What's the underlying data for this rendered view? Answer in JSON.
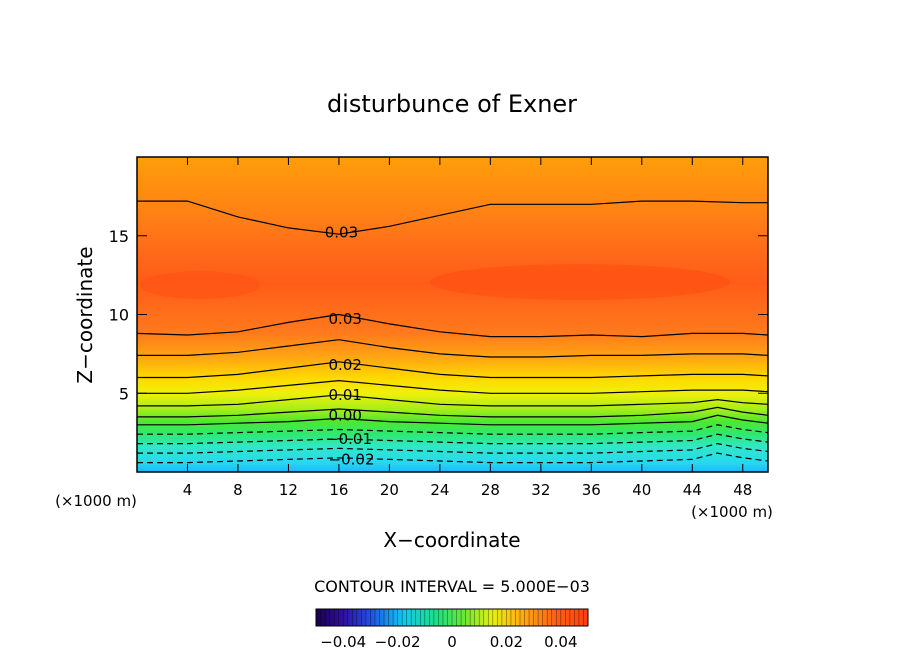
{
  "chart_data": {
    "type": "heatmap",
    "title": "disturbunce of Exner",
    "xlabel": "X−coordinate",
    "ylabel": "Z−coordinate",
    "x_unit_left": "(×1000 m)",
    "x_unit_right": "(×1000 m)",
    "xlim": [
      0,
      50
    ],
    "ylim": [
      0,
      20
    ],
    "x_ticks": [
      4,
      8,
      12,
      16,
      20,
      24,
      28,
      32,
      36,
      40,
      44,
      48
    ],
    "x_tick_labels": [
      "4",
      "8",
      "12",
      "16",
      "20",
      "24",
      "28",
      "32",
      "36",
      "40",
      "44",
      "48"
    ],
    "y_ticks": [
      5,
      10,
      15
    ],
    "y_tick_labels": [
      "5",
      "10",
      "15"
    ],
    "contour_interval_text": "CONTOUR INTERVAL = 5.000E−03",
    "contour_interval": 0.005,
    "contour_labels": [
      {
        "text": "0.03",
        "x": 16.2,
        "z": 15.2
      },
      {
        "text": "0.03",
        "x": 16.5,
        "z": 9.7
      },
      {
        "text": "0.02",
        "x": 16.5,
        "z": 6.8
      },
      {
        "text": "0.01",
        "x": 16.5,
        "z": 4.9
      },
      {
        "text": "0.00",
        "x": 16.5,
        "z": 3.6
      },
      {
        "text": "−0.01",
        "x": 16.8,
        "z": 2.1
      },
      {
        "text": "−0.02",
        "x": 17.0,
        "z": 0.8
      }
    ],
    "contours": [
      {
        "level": 0.03,
        "style": "solid",
        "points": [
          [
            0,
            17.2
          ],
          [
            4,
            17.2
          ],
          [
            8,
            16.2
          ],
          [
            12,
            15.5
          ],
          [
            16,
            15.1
          ],
          [
            20,
            15.6
          ],
          [
            24,
            16.3
          ],
          [
            28,
            17.0
          ],
          [
            32,
            17.0
          ],
          [
            36,
            17.0
          ],
          [
            40,
            17.2
          ],
          [
            44,
            17.2
          ],
          [
            48,
            17.1
          ],
          [
            50,
            17.1
          ]
        ]
      },
      {
        "level": 0.03,
        "style": "solid",
        "points": [
          [
            0,
            8.8
          ],
          [
            4,
            8.7
          ],
          [
            8,
            8.9
          ],
          [
            12,
            9.5
          ],
          [
            16,
            10.0
          ],
          [
            20,
            9.4
          ],
          [
            24,
            8.9
          ],
          [
            28,
            8.6
          ],
          [
            32,
            8.6
          ],
          [
            36,
            8.7
          ],
          [
            40,
            8.6
          ],
          [
            44,
            8.8
          ],
          [
            48,
            8.8
          ],
          [
            50,
            8.7
          ]
        ]
      },
      {
        "level": 0.025,
        "style": "solid",
        "points": [
          [
            0,
            7.4
          ],
          [
            4,
            7.4
          ],
          [
            8,
            7.6
          ],
          [
            12,
            8.0
          ],
          [
            16,
            8.4
          ],
          [
            20,
            7.9
          ],
          [
            24,
            7.5
          ],
          [
            28,
            7.3
          ],
          [
            32,
            7.3
          ],
          [
            36,
            7.4
          ],
          [
            40,
            7.4
          ],
          [
            44,
            7.5
          ],
          [
            48,
            7.5
          ],
          [
            50,
            7.4
          ]
        ]
      },
      {
        "level": 0.02,
        "style": "solid",
        "points": [
          [
            0,
            6.0
          ],
          [
            4,
            6.0
          ],
          [
            8,
            6.2
          ],
          [
            12,
            6.6
          ],
          [
            16,
            7.0
          ],
          [
            20,
            6.6
          ],
          [
            24,
            6.2
          ],
          [
            28,
            6.0
          ],
          [
            32,
            6.0
          ],
          [
            36,
            6.0
          ],
          [
            40,
            6.1
          ],
          [
            44,
            6.2
          ],
          [
            48,
            6.2
          ],
          [
            50,
            6.1
          ]
        ]
      },
      {
        "level": 0.015,
        "style": "solid",
        "points": [
          [
            0,
            5.0
          ],
          [
            4,
            5.0
          ],
          [
            8,
            5.2
          ],
          [
            12,
            5.5
          ],
          [
            16,
            5.8
          ],
          [
            20,
            5.5
          ],
          [
            24,
            5.2
          ],
          [
            28,
            5.0
          ],
          [
            32,
            5.0
          ],
          [
            36,
            5.0
          ],
          [
            40,
            5.1
          ],
          [
            44,
            5.2
          ],
          [
            48,
            5.2
          ],
          [
            50,
            5.1
          ]
        ]
      },
      {
        "level": 0.01,
        "style": "solid",
        "points": [
          [
            0,
            4.2
          ],
          [
            4,
            4.2
          ],
          [
            8,
            4.3
          ],
          [
            12,
            4.6
          ],
          [
            16,
            4.9
          ],
          [
            20,
            4.6
          ],
          [
            24,
            4.3
          ],
          [
            28,
            4.2
          ],
          [
            32,
            4.2
          ],
          [
            36,
            4.2
          ],
          [
            40,
            4.3
          ],
          [
            44,
            4.4
          ],
          [
            46,
            4.6
          ],
          [
            48,
            4.4
          ],
          [
            50,
            4.3
          ]
        ]
      },
      {
        "level": 0.005,
        "style": "solid",
        "points": [
          [
            0,
            3.5
          ],
          [
            4,
            3.5
          ],
          [
            8,
            3.6
          ],
          [
            12,
            3.8
          ],
          [
            16,
            4.0
          ],
          [
            20,
            3.8
          ],
          [
            24,
            3.6
          ],
          [
            28,
            3.5
          ],
          [
            32,
            3.5
          ],
          [
            36,
            3.5
          ],
          [
            40,
            3.6
          ],
          [
            44,
            3.8
          ],
          [
            46,
            4.1
          ],
          [
            48,
            3.8
          ],
          [
            50,
            3.6
          ]
        ]
      },
      {
        "level": 0.0,
        "style": "solid",
        "points": [
          [
            0,
            3.0
          ],
          [
            4,
            3.0
          ],
          [
            8,
            3.1
          ],
          [
            12,
            3.2
          ],
          [
            16,
            3.4
          ],
          [
            20,
            3.2
          ],
          [
            24,
            3.1
          ],
          [
            28,
            3.0
          ],
          [
            32,
            3.0
          ],
          [
            36,
            3.0
          ],
          [
            40,
            3.1
          ],
          [
            44,
            3.2
          ],
          [
            46,
            3.6
          ],
          [
            48,
            3.3
          ],
          [
            50,
            3.1
          ]
        ]
      },
      {
        "level": -0.005,
        "style": "dashed",
        "points": [
          [
            0,
            2.4
          ],
          [
            4,
            2.4
          ],
          [
            8,
            2.5
          ],
          [
            12,
            2.6
          ],
          [
            16,
            2.7
          ],
          [
            20,
            2.6
          ],
          [
            24,
            2.5
          ],
          [
            28,
            2.4
          ],
          [
            32,
            2.4
          ],
          [
            36,
            2.4
          ],
          [
            40,
            2.5
          ],
          [
            44,
            2.6
          ],
          [
            46,
            3.0
          ],
          [
            48,
            2.7
          ],
          [
            50,
            2.5
          ]
        ]
      },
      {
        "level": -0.01,
        "style": "dashed",
        "points": [
          [
            0,
            1.8
          ],
          [
            4,
            1.8
          ],
          [
            8,
            1.9
          ],
          [
            12,
            2.0
          ],
          [
            16,
            2.1
          ],
          [
            20,
            2.0
          ],
          [
            24,
            1.9
          ],
          [
            28,
            1.8
          ],
          [
            32,
            1.8
          ],
          [
            36,
            1.8
          ],
          [
            40,
            1.9
          ],
          [
            44,
            2.0
          ],
          [
            46,
            2.4
          ],
          [
            48,
            2.1
          ],
          [
            50,
            1.9
          ]
        ]
      },
      {
        "level": -0.015,
        "style": "dashed",
        "points": [
          [
            0,
            1.2
          ],
          [
            4,
            1.2
          ],
          [
            8,
            1.3
          ],
          [
            12,
            1.4
          ],
          [
            16,
            1.5
          ],
          [
            20,
            1.4
          ],
          [
            24,
            1.3
          ],
          [
            28,
            1.2
          ],
          [
            32,
            1.2
          ],
          [
            36,
            1.2
          ],
          [
            40,
            1.3
          ],
          [
            44,
            1.4
          ],
          [
            46,
            1.8
          ],
          [
            48,
            1.5
          ],
          [
            50,
            1.3
          ]
        ]
      },
      {
        "level": -0.02,
        "style": "dashed",
        "points": [
          [
            0,
            0.6
          ],
          [
            4,
            0.6
          ],
          [
            8,
            0.7
          ],
          [
            12,
            0.8
          ],
          [
            16,
            0.9
          ],
          [
            20,
            0.8
          ],
          [
            24,
            0.7
          ],
          [
            28,
            0.6
          ],
          [
            32,
            0.6
          ],
          [
            36,
            0.6
          ],
          [
            40,
            0.7
          ],
          [
            44,
            0.8
          ],
          [
            46,
            1.2
          ],
          [
            48,
            0.9
          ],
          [
            50,
            0.7
          ]
        ]
      }
    ],
    "colorbar": {
      "min": -0.05,
      "max": 0.05,
      "tick_labels": [
        "−0.04",
        "−0.02",
        "0",
        "0.02",
        "0.04"
      ],
      "tick_values": [
        -0.04,
        -0.02,
        0,
        0.02,
        0.04
      ]
    }
  }
}
